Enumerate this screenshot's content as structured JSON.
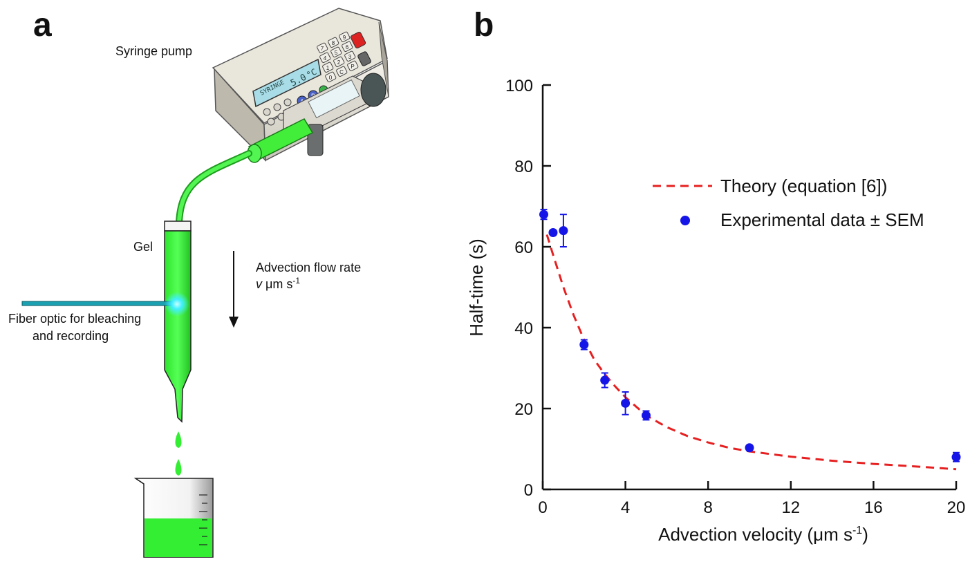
{
  "panel_a": {
    "letter": "a",
    "syringe_pump_label": "Syringe pump",
    "gel_label": "Gel",
    "flow_label_line1": "Advection flow rate",
    "flow_label_v": "v",
    "flow_label_units": "μm s",
    "flow_label_exp": "-1",
    "fiber_label_line1": "Fiber optic for bleaching",
    "fiber_label_line2": "and recording",
    "pump_display": {
      "syringe": "SYRINGE",
      "rate": "5.0",
      "unit": "°C"
    },
    "pump_buttons": {
      "a": "A",
      "b": "B"
    },
    "keypad": [
      "7",
      "8",
      "9",
      "4",
      "5",
      "6",
      "1",
      "2",
      "3",
      "0",
      "C",
      "P"
    ],
    "colors": {
      "fluid": "#33ee33",
      "fiber": "#1aa0b0",
      "glow": "#40f0ff",
      "stop": "#d22"
    }
  },
  "chart_data": {
    "type": "scatter",
    "panel_letter": "b",
    "xlabel": "Advection velocity (μm s",
    "xlabel_exp": "-1",
    "xlabel_close": ")",
    "ylabel": "Half-time (s)",
    "xlim": [
      0,
      20
    ],
    "ylim": [
      0,
      100
    ],
    "xticks": [
      0,
      4,
      8,
      12,
      16,
      20
    ],
    "yticks": [
      0,
      20,
      40,
      60,
      80,
      100
    ],
    "legend_position": "top-right",
    "series": [
      {
        "name": "Theory (equation [6])",
        "kind": "dashed-line",
        "color": "#e62020",
        "x": [
          0.2,
          0.5,
          1,
          1.5,
          2,
          2.5,
          3,
          3.5,
          4,
          5,
          6,
          7,
          8,
          9,
          10,
          12,
          14,
          16,
          18,
          20
        ],
        "y": [
          63,
          58,
          50,
          43,
          37,
          32,
          28.5,
          25.5,
          22.8,
          18.3,
          15.4,
          13.2,
          11.6,
          10.3,
          9.4,
          8.1,
          7.1,
          6.3,
          5.7,
          5.0
        ]
      },
      {
        "name": "Experimental data ± SEM",
        "kind": "points",
        "color": "#1515e8",
        "x": [
          0.05,
          0.5,
          1,
          2,
          3,
          4,
          5,
          10,
          20
        ],
        "y": [
          68,
          63.5,
          64,
          35.8,
          27,
          21.3,
          18.3,
          10.3,
          8.0
        ],
        "err": [
          1.2,
          0.6,
          4.0,
          1.2,
          1.8,
          2.8,
          1.1,
          0.6,
          1.1
        ]
      }
    ]
  }
}
